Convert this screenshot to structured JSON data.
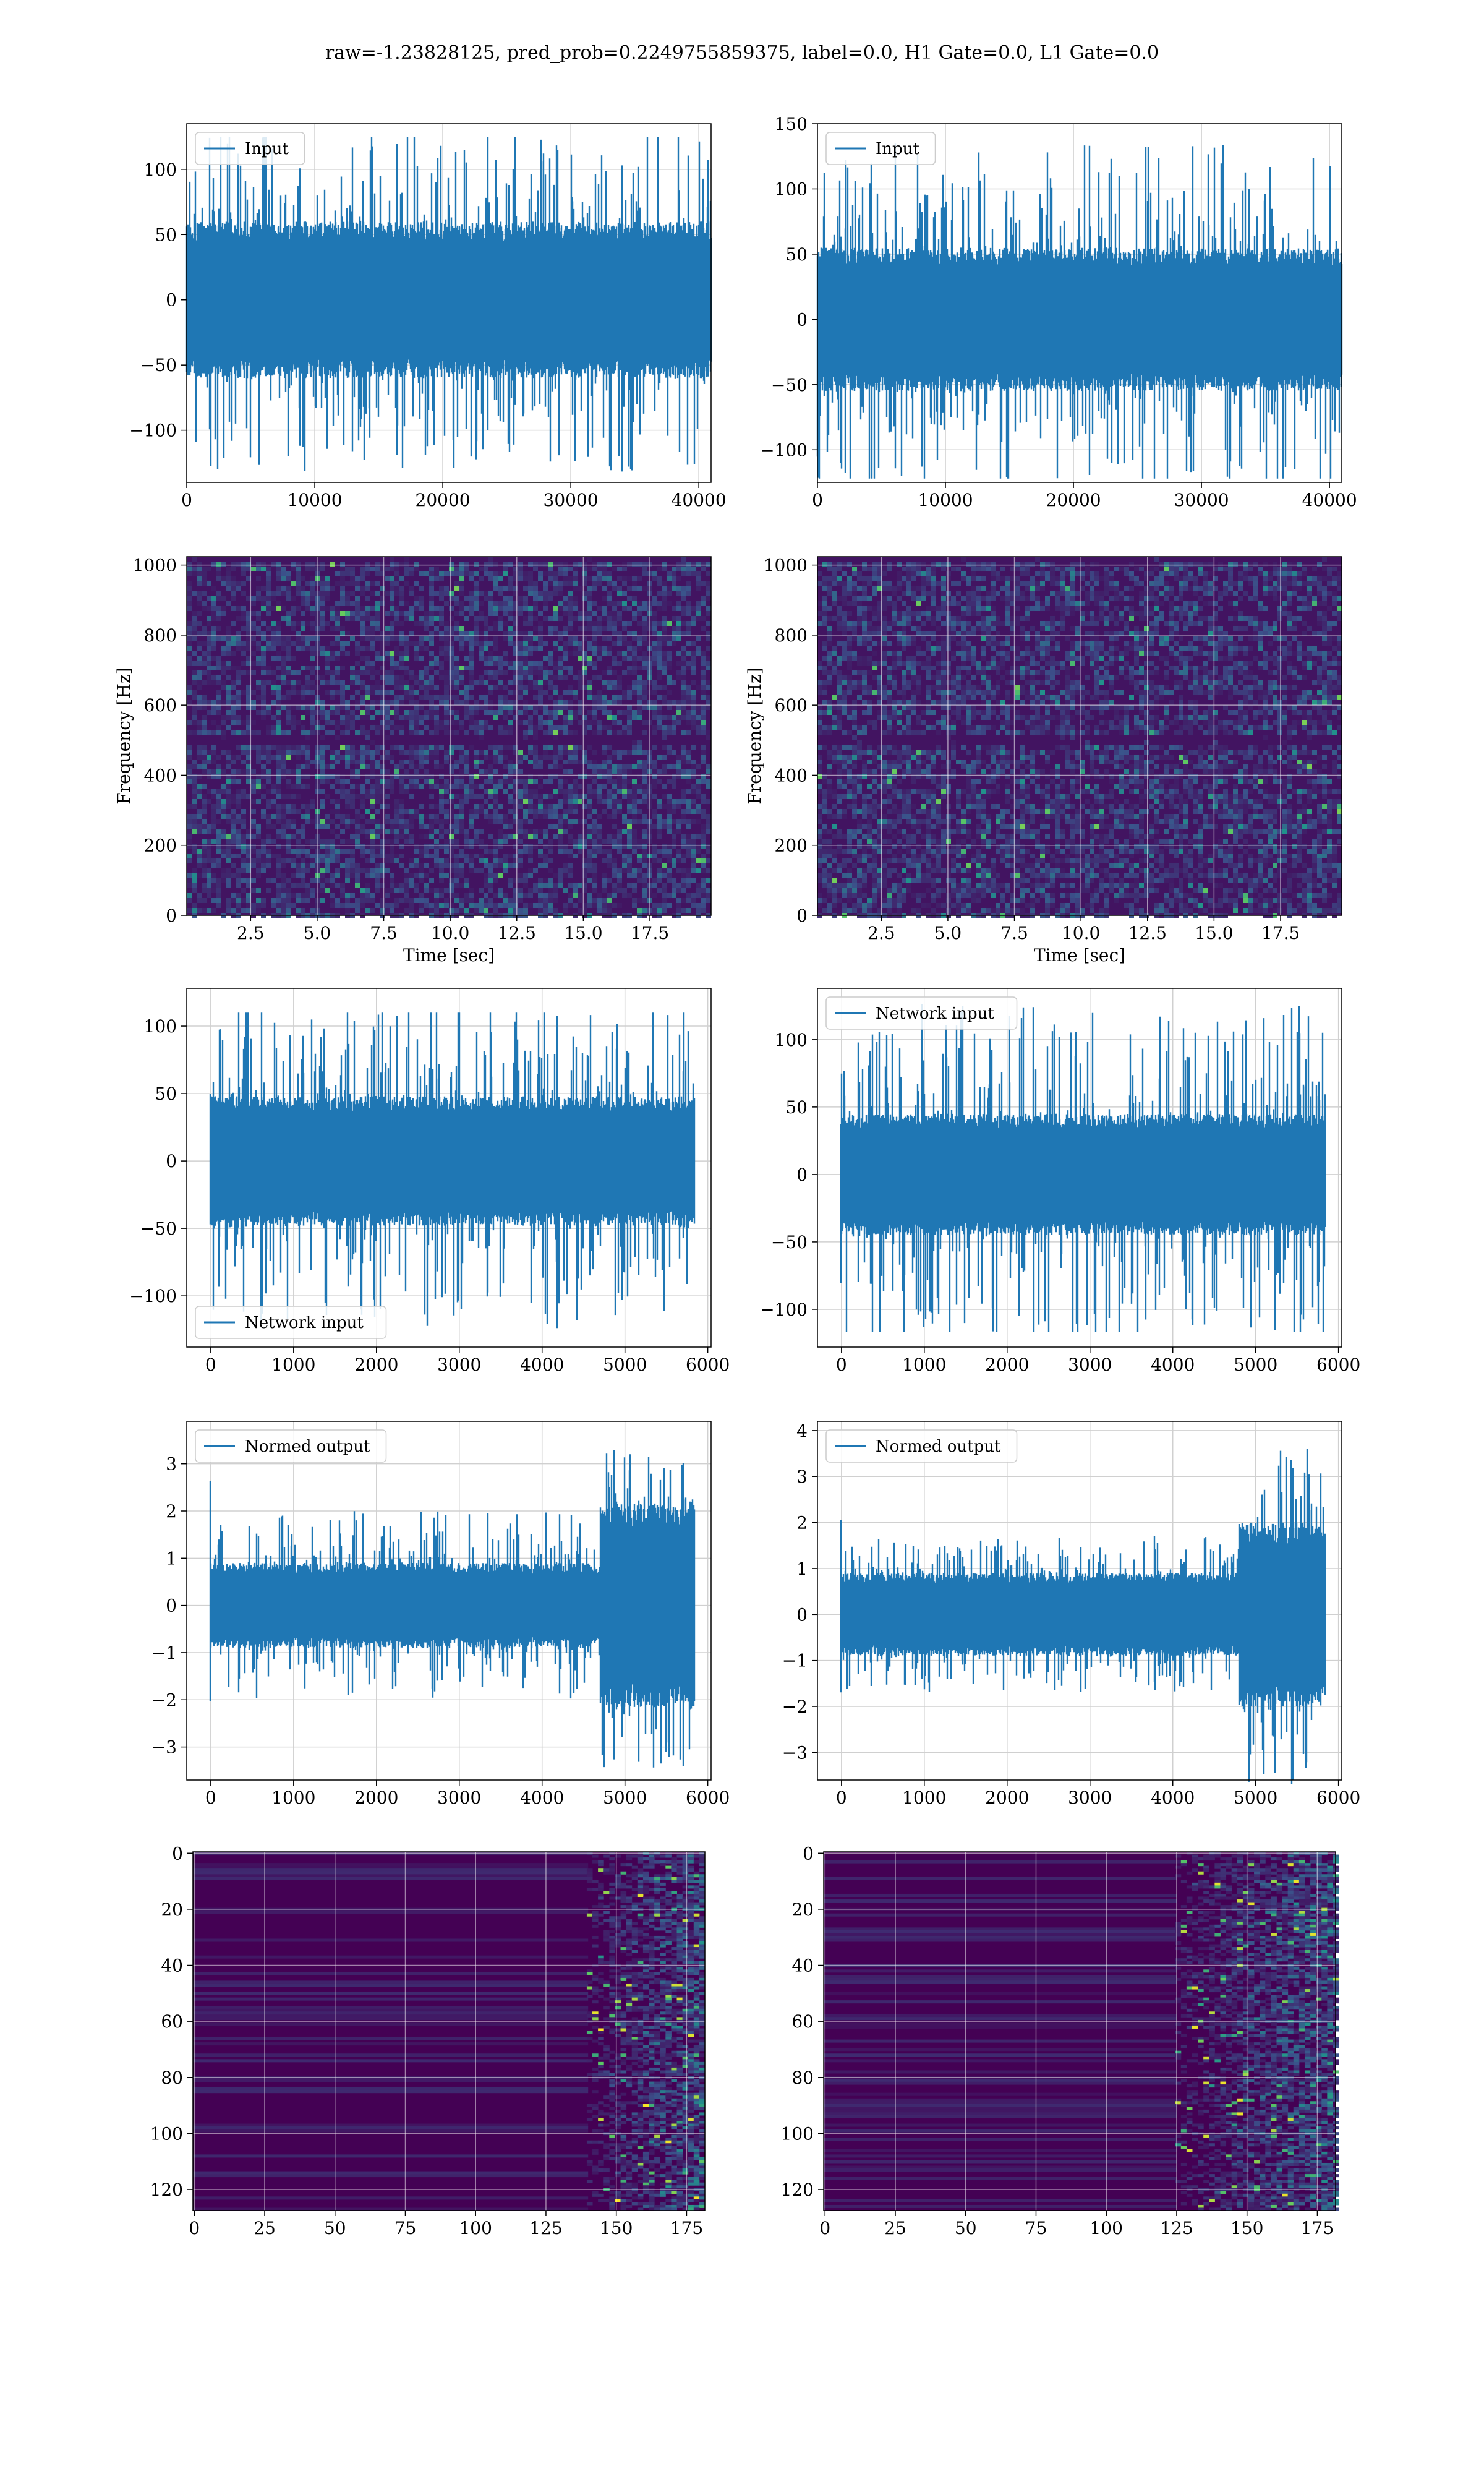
{
  "figure": {
    "title": "raw=-1.23828125, pred_prob=0.2249755859375, label=0.0, H1 Gate=0.0, L1 Gate=0.0"
  },
  "colors": {
    "series": "#1f77b4",
    "grid": "#d0d0d0",
    "viridis": [
      "#440154",
      "#3b528b",
      "#21918c",
      "#5ec962",
      "#fde725"
    ]
  },
  "chart_data": [
    {
      "id": "input-left",
      "type": "line",
      "legend": "Input",
      "legend_loc": "upper left",
      "xlim": [
        0,
        40960
      ],
      "ylim": [
        -140,
        135
      ],
      "xticks": [
        0,
        10000,
        20000,
        30000,
        40000
      ],
      "yticks": [
        -100,
        -50,
        0,
        50,
        100
      ],
      "n_points": 40960,
      "envelope": {
        "core": 60,
        "peak_max": 125,
        "peak_min": -132
      },
      "grid": true
    },
    {
      "id": "input-right",
      "type": "line",
      "legend": "Input",
      "legend_loc": "upper left",
      "xlim": [
        0,
        40960
      ],
      "ylim": [
        -125,
        150
      ],
      "xticks": [
        0,
        10000,
        20000,
        30000,
        40000
      ],
      "yticks": [
        -100,
        -50,
        0,
        50,
        100,
        150
      ],
      "n_points": 40960,
      "envelope": {
        "core": 55,
        "peak_max": 138,
        "peak_min": -122
      },
      "grid": true
    },
    {
      "id": "spectrogram-left",
      "type": "heatmap",
      "xlabel": "Time [sec]",
      "ylabel": "Frequency [Hz]",
      "xlim": [
        0.1,
        19.8
      ],
      "ylim": [
        0,
        1024
      ],
      "xticks": [
        2.5,
        5.0,
        7.5,
        10.0,
        12.5,
        15.0,
        17.5
      ],
      "yticks": [
        0,
        200,
        400,
        600,
        800,
        1000
      ],
      "colormap": "viridis",
      "value_range": [
        0,
        1
      ],
      "dark_band_hz": [
        490,
        520
      ],
      "grid": true
    },
    {
      "id": "spectrogram-right",
      "type": "heatmap",
      "xlabel": "Time [sec]",
      "ylabel": "Frequency [Hz]",
      "xlim": [
        0.1,
        19.8
      ],
      "ylim": [
        0,
        1024
      ],
      "xticks": [
        2.5,
        5.0,
        7.5,
        10.0,
        12.5,
        15.0,
        17.5
      ],
      "yticks": [
        0,
        200,
        400,
        600,
        800,
        1000
      ],
      "colormap": "viridis",
      "value_range": [
        0,
        1
      ],
      "dark_band_hz": [
        490,
        520
      ],
      "grid": true
    },
    {
      "id": "network-input-left",
      "type": "line",
      "legend": "Network input",
      "legend_loc": "lower left",
      "xlim": [
        -290,
        6040
      ],
      "ylim": [
        -138,
        128
      ],
      "xticks": [
        0,
        1000,
        2000,
        3000,
        4000,
        5000,
        6000
      ],
      "yticks": [
        -100,
        -50,
        0,
        50,
        100
      ],
      "n_points": 5832,
      "envelope": {
        "core": 48,
        "peak_max": 110,
        "peak_min": -125
      },
      "grid": true
    },
    {
      "id": "network-input-right",
      "type": "line",
      "legend": "Network input",
      "legend_loc": "upper left",
      "xlim": [
        -290,
        6040
      ],
      "ylim": [
        -128,
        138
      ],
      "xticks": [
        0,
        1000,
        2000,
        3000,
        4000,
        5000,
        6000
      ],
      "yticks": [
        -100,
        -50,
        0,
        50,
        100
      ],
      "n_points": 5832,
      "envelope": {
        "core": 45,
        "peak_max": 128,
        "peak_min": -117
      },
      "grid": true
    },
    {
      "id": "normed-output-left",
      "type": "line",
      "legend": "Normed output",
      "legend_loc": "upper left",
      "xlim": [
        -290,
        6040
      ],
      "ylim": [
        -3.7,
        3.9
      ],
      "xticks": [
        0,
        1000,
        2000,
        3000,
        4000,
        5000,
        6000
      ],
      "yticks": [
        -3,
        -2,
        -1,
        0,
        1,
        2,
        3
      ],
      "n_points": 5832,
      "segments": [
        {
          "x": [
            0,
            4700
          ],
          "core": 0.9,
          "peak": 2.0
        },
        {
          "x": [
            4700,
            5832
          ],
          "core": 2.2,
          "peak": 3.5
        }
      ],
      "grid": true
    },
    {
      "id": "normed-output-right",
      "type": "line",
      "legend": "Normed output",
      "legend_loc": "upper left",
      "xlim": [
        -290,
        6040
      ],
      "ylim": [
        -3.6,
        4.2
      ],
      "xticks": [
        0,
        1000,
        2000,
        3000,
        4000,
        5000,
        6000
      ],
      "yticks": [
        -3,
        -2,
        -1,
        0,
        1,
        2,
        3,
        4
      ],
      "n_points": 5832,
      "segments": [
        {
          "x": [
            0,
            4800
          ],
          "core": 0.9,
          "peak": 1.7
        },
        {
          "x": [
            4800,
            5832
          ],
          "core": 2.0,
          "peak": 3.8
        }
      ],
      "grid": true
    },
    {
      "id": "feature-map-left",
      "type": "heatmap",
      "xlim": [
        -0.5,
        181.5
      ],
      "ylim": [
        127.5,
        -0.5
      ],
      "y_inverted": true,
      "xticks": [
        0,
        25,
        50,
        75,
        100,
        125,
        150,
        175
      ],
      "yticks": [
        0,
        20,
        40,
        60,
        80,
        100,
        120
      ],
      "rows": 128,
      "cols": 182,
      "colormap": "viridis",
      "active_from_col": 140,
      "grid": true
    },
    {
      "id": "feature-map-right",
      "type": "heatmap",
      "xlim": [
        -0.5,
        181.5
      ],
      "ylim": [
        127.5,
        -0.5
      ],
      "y_inverted": true,
      "xticks": [
        0,
        25,
        50,
        75,
        100,
        125,
        150,
        175
      ],
      "yticks": [
        0,
        20,
        40,
        60,
        80,
        100,
        120
      ],
      "rows": 128,
      "cols": 182,
      "colormap": "viridis",
      "active_from_col": 125,
      "grid": true
    }
  ]
}
